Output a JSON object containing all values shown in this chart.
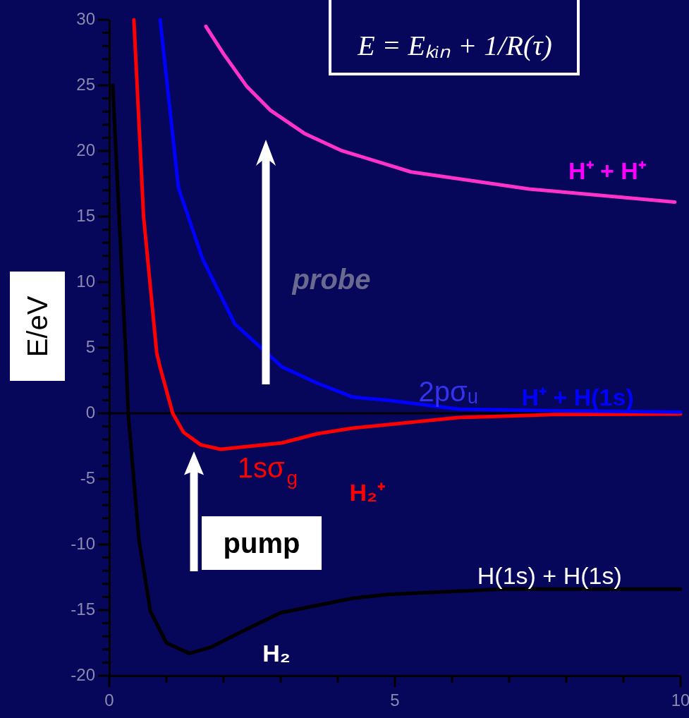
{
  "chart_data": {
    "type": "line",
    "ylabel": "E/eV",
    "annotations": [
      "E = Eₖᵢₙ + 1/R(τ)",
      "probe",
      "pump",
      "H⁺ + H⁺",
      "2pσᵤ",
      "H⁺ + H(1s)",
      "1sσ$_{g}$",
      "H₂⁺",
      "H(1s) + H(1s)",
      "H₂"
    ],
    "series": [
      {
        "color": "#000000",
        "x": [
          0.06,
          0.3,
          0.33,
          0.52,
          0.72,
          1.0,
          1.4,
          1.8,
          2.2,
          3.0,
          4.26,
          4.88,
          6.9,
          10
        ],
        "values": [
          25,
          3.5,
          0,
          -9.7,
          -15.1,
          -17.5,
          -18.3,
          -17.8,
          -16.9,
          -15.2,
          -14.1,
          -13.8,
          -13.4,
          -13.4
        ]
      },
      {
        "color": "#ff0000",
        "x": [
          0.43,
          0.6,
          0.83,
          0.89,
          1.11,
          1.3,
          1.6,
          1.95,
          3.02,
          3.64,
          4.26,
          6.11,
          7.75,
          10
        ],
        "values": [
          30,
          15,
          4.6,
          3.5,
          0,
          -1.45,
          -2.4,
          -2.74,
          -2.26,
          -1.56,
          -1.13,
          -0.32,
          -0.1,
          -0.05
        ]
      },
      {
        "color": "#0000ff",
        "x": [
          0.89,
          1.21,
          1.63,
          2.2,
          3.02,
          3.64,
          4.26,
          4.88,
          6.11,
          7.75,
          10
        ],
        "values": [
          30,
          17.2,
          11.8,
          6.8,
          3.55,
          2.3,
          1.24,
          1.0,
          0.32,
          0.2,
          0.1
        ]
      },
      {
        "color": "#ff33cc",
        "x": [
          1.69,
          2.0,
          2.41,
          2.82,
          3.43,
          4.05,
          5.28,
          7.35,
          9.9
        ],
        "values": [
          29.5,
          27.4,
          24.9,
          23.1,
          21.3,
          20.05,
          18.4,
          17.1,
          16.1
        ]
      }
    ],
    "xlim": [
      0,
      10
    ],
    "xticks": [
      0,
      {
        "value": 1,
        "label": null
      },
      {
        "value": 2,
        "label": null
      },
      {
        "value": 3,
        "label": null
      },
      {
        "value": 4,
        "label": null
      },
      5,
      {
        "value": 6,
        "label": null
      },
      {
        "value": 7,
        "label": null
      },
      {
        "value": 8,
        "label": null
      },
      {
        "value": 9,
        "label": null
      },
      10
    ],
    "ylim": [
      -20,
      30
    ],
    "yticks": [
      -20,
      {
        "value": -19,
        "label": null
      },
      {
        "value": -18,
        "label": null
      },
      {
        "value": -17,
        "label": null
      },
      {
        "value": -16,
        "label": null
      },
      -15,
      {
        "value": -14,
        "label": null
      },
      {
        "value": -13,
        "label": null
      },
      {
        "value": -12,
        "label": null
      },
      {
        "value": -11,
        "label": null
      },
      -10,
      {
        "value": -9,
        "label": null
      },
      {
        "value": -8,
        "label": null
      },
      {
        "value": -7,
        "label": null
      },
      {
        "value": -6,
        "label": null
      },
      -5,
      {
        "value": -4,
        "label": null
      },
      {
        "value": -3,
        "label": null
      },
      {
        "value": -2,
        "label": null
      },
      {
        "value": -1,
        "label": null
      },
      0,
      {
        "value": 1,
        "label": null
      },
      {
        "value": 2,
        "label": null
      },
      {
        "value": 3,
        "label": null
      },
      {
        "value": 4,
        "label": null
      },
      5,
      {
        "value": 6,
        "label": null
      },
      {
        "value": 7,
        "label": null
      },
      {
        "value": 8,
        "label": null
      },
      {
        "value": 9,
        "label": null
      },
      10,
      {
        "value": 11,
        "label": null
      },
      {
        "value": 12,
        "label": null
      },
      {
        "value": 13,
        "label": null
      },
      {
        "value": 14,
        "label": null
      },
      15,
      {
        "value": 16,
        "label": null
      },
      {
        "value": 17,
        "label": null
      },
      {
        "value": 18,
        "label": null
      },
      {
        "value": 19,
        "label": null
      },
      20,
      {
        "value": 21,
        "label": null
      },
      {
        "value": 22,
        "label": null
      },
      {
        "value": 23,
        "label": null
      },
      {
        "value": 24,
        "label": null
      },
      25,
      {
        "value": 26,
        "label": null
      },
      {
        "value": 27,
        "label": null
      },
      {
        "value": 28,
        "label": null
      },
      {
        "value": 29,
        "label": null
      },
      30
    ],
    "ref_lines": [
      {
        "axis": "y",
        "value": 0,
        "color": "#000000"
      }
    ],
    "grid": false,
    "marker": "none",
    "line_style": "solid"
  }
}
